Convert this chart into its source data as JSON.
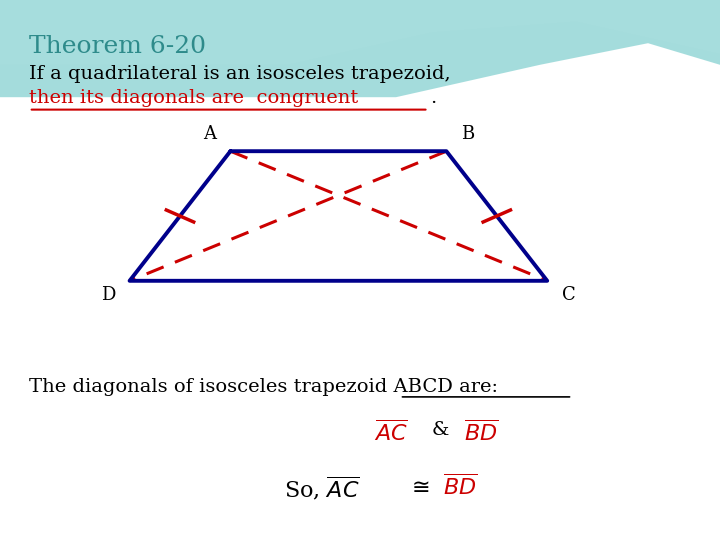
{
  "title": "Theorem 6-20",
  "title_color": "#2E8B8B",
  "line1": "If a quadrilateral is an isosceles trapezoid,",
  "line2_red": "then its diagonals are  congruent",
  "line2_period": ".",
  "bottom_line1": "The diagonals of isosceles trapezoid ABCD are:",
  "bottom_line2_red": "AC",
  "bottom_line2_amp": " & ",
  "bottom_line2_red2": "BD",
  "bottom_line3_so": "So, ",
  "bottom_line3_ac": "AC",
  "bottom_line3_cong": " ≅ ",
  "bottom_line3_bd": "BD",
  "trap_A": [
    0.32,
    0.72
  ],
  "trap_B": [
    0.62,
    0.72
  ],
  "trap_D": [
    0.18,
    0.48
  ],
  "trap_C": [
    0.76,
    0.48
  ],
  "blue_color": "#00008B",
  "red_color": "#CC0000",
  "bg_top_color": "#B0E0E8",
  "tick_mark_color": "#CC0000",
  "background_color": "#FFFFFF"
}
